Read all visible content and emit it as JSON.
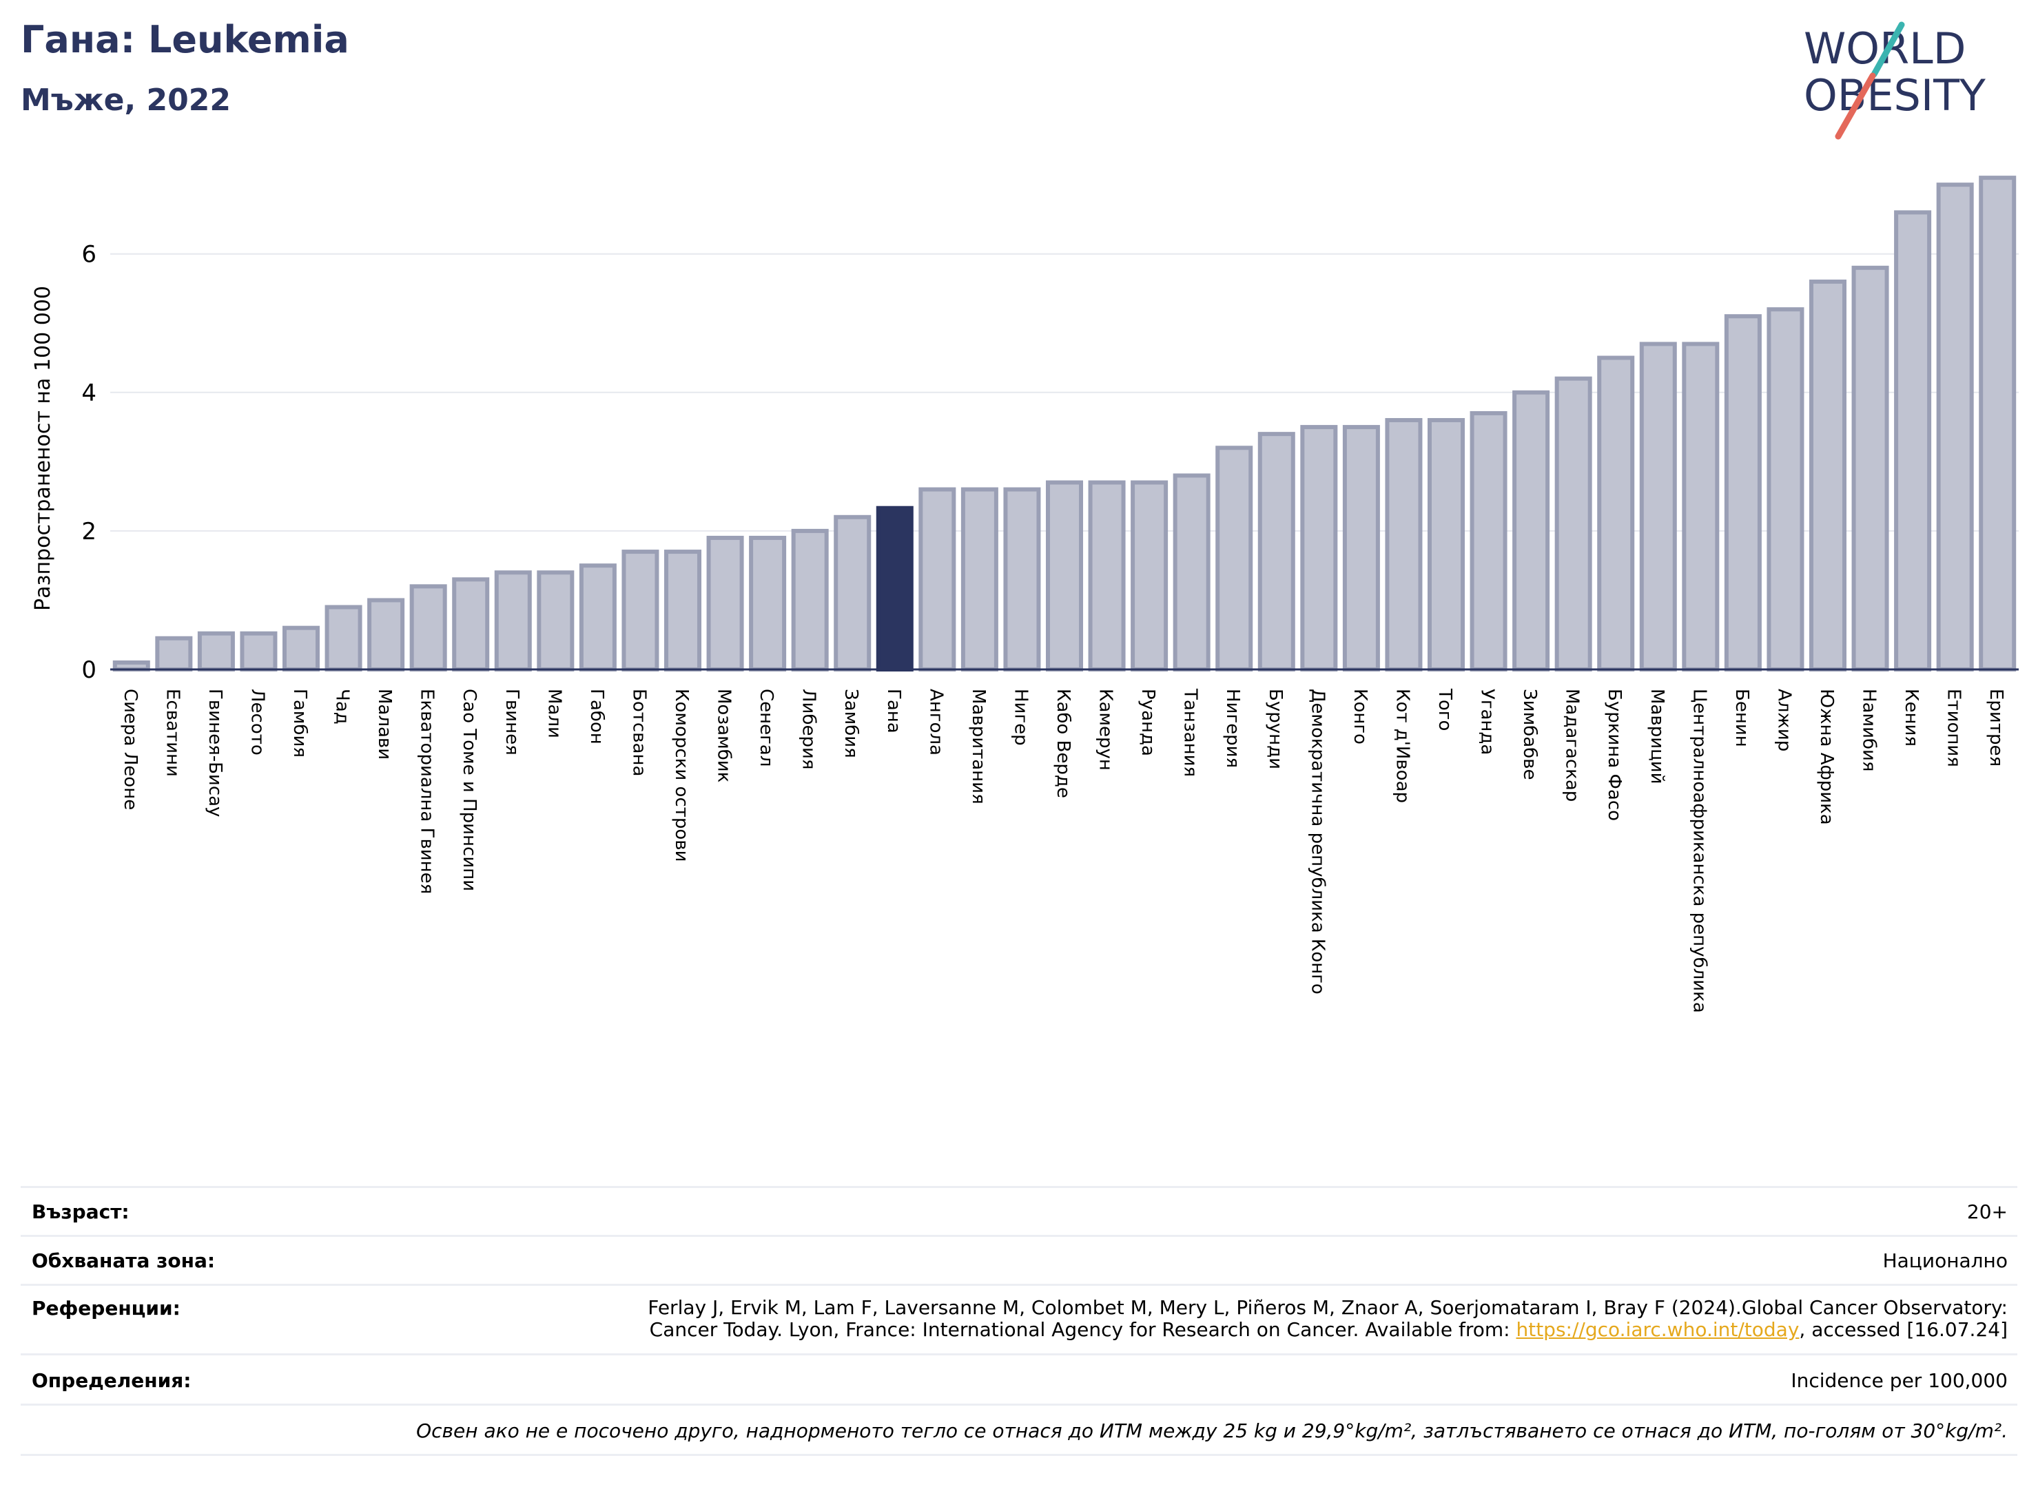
{
  "header": {
    "title": "Гана: Leukemia",
    "subtitle": "Мъже, 2022"
  },
  "logo": {
    "line1": "WORLD",
    "line2": "OBESITY",
    "colors": {
      "text": "#2b3560",
      "teal": "#3bb4b0",
      "coral": "#e4685a"
    }
  },
  "chart_data": {
    "type": "bar",
    "ylabel": "Разпространеност  на 100 000",
    "ylim": [
      0,
      7.3
    ],
    "yticks": [
      0,
      2,
      4,
      6
    ],
    "grid": true,
    "highlight": "Гана",
    "colors": {
      "bar": "#c0c3d1",
      "bar_edge": "#9a9fb5",
      "highlight": "#2b3560"
    },
    "categories": [
      "Сиера Леоне",
      "Есватини",
      "Гвинея-Бисау",
      "Лесото",
      "Гамбия",
      "Чад",
      "Малави",
      "Екваториална Гвинея",
      "Сао Томе и Принсипи",
      "Гвинея",
      "Мали",
      "Габон",
      "Ботсвана",
      "Коморски острови",
      "Мозамбик",
      "Сенегал",
      "Либерия",
      "Замбия",
      "Гана",
      "Ангола",
      "Мавритания",
      "Нигер",
      "Кабо Верде",
      "Камерун",
      "Руанда",
      "Танзания",
      "Нигерия",
      "Бурунди",
      "Демократична република Конго",
      "Конго",
      "Кот д'Ивоар",
      "Того",
      "Уганда",
      "Зимбабве",
      "Мадагаскар",
      "Буркина Фасо",
      "Мавриций",
      "Централноафриканска република",
      "Бенин",
      "Алжир",
      "Южна Африка",
      "Намибия",
      "Кения",
      "Етиопия",
      "Еритрея"
    ],
    "values": [
      0.1,
      0.45,
      0.52,
      0.52,
      0.6,
      0.9,
      1.0,
      1.2,
      1.3,
      1.4,
      1.4,
      1.5,
      1.7,
      1.7,
      1.9,
      1.9,
      2.0,
      2.2,
      2.33,
      2.6,
      2.6,
      2.6,
      2.7,
      2.7,
      2.7,
      2.8,
      3.2,
      3.4,
      3.5,
      3.5,
      3.6,
      3.6,
      3.7,
      4.0,
      4.2,
      4.5,
      4.7,
      4.7,
      5.1,
      5.2,
      5.6,
      5.8,
      6.6,
      7.0,
      7.1
    ]
  },
  "info": {
    "age_label": "Възраст:",
    "age_value": "20+",
    "area_label": "Обхваната зона:",
    "area_value": "Национално",
    "ref_label": "Референции:",
    "ref_line1": "Ferlay J, Ervik M, Lam F, Laversanne M, Colombet M, Mery L, Piñeros M, Znaor A, Soerjomataram I, Bray F (2024).Global Cancer Observatory:",
    "ref_line2_pre": "Cancer Today. Lyon, France: International Agency for Research on Cancer. Available from: ",
    "ref_link": "https://gco.iarc.who.int/today",
    "ref_line2_post": ", accessed [16.07.24]",
    "def_label": "Определения:",
    "def_value": "Incidence per 100,000",
    "note": "Освен ако не е посочено друго, наднорменото тегло се отнася до ИТМ между 25 kg и 29,9°kg/m², затлъстяването се отнася до ИТМ, по-голям от 30°kg/m²."
  }
}
